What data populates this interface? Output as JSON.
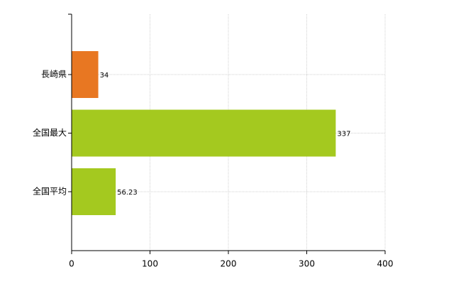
{
  "chart_data": {
    "type": "bar",
    "orientation": "horizontal",
    "categories": [
      "長崎県",
      "全国最大",
      "全国平均"
    ],
    "values": [
      34,
      337,
      56.23
    ],
    "colors": [
      "#e87722",
      "#a4c91f",
      "#a4c91f"
    ],
    "xlim": [
      0,
      400
    ],
    "xticks": [
      0,
      100,
      200,
      300,
      400
    ],
    "grid": true
  }
}
